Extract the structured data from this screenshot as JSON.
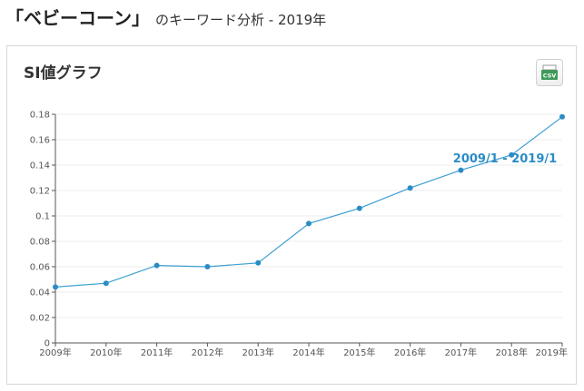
{
  "header": {
    "title": "「ベビーコーン」",
    "subtitle": "のキーワード分析 - 2019年"
  },
  "card": {
    "title": "SI値グラフ",
    "csv_label": "CSV",
    "csv_icon": "csv-download-icon"
  },
  "colors": {
    "line": "#3b9fd1",
    "point": "#2b8cc4",
    "range_label": "#2a8cc6",
    "csv_icon": "#3e9a5a"
  },
  "chart_data": {
    "type": "line",
    "title": "",
    "xlabel": "",
    "ylabel": "",
    "x": [
      "2009年",
      "2010年",
      "2011年",
      "2012年",
      "2013年",
      "2014年",
      "2015年",
      "2016年",
      "2017年",
      "2018年",
      "2019年"
    ],
    "yticks": [
      "0",
      "0.02",
      "0.04",
      "0.06",
      "0.08",
      "0.1",
      "0.12",
      "0.14",
      "0.16",
      "0.18"
    ],
    "series": [
      {
        "values": [
          0.044,
          0.047,
          0.061,
          0.06,
          0.063,
          0.094,
          0.106,
          0.122,
          0.136,
          0.148,
          0.178
        ]
      }
    ],
    "ylim": [
      0,
      0.18
    ],
    "grid": true,
    "annotation": "2009/1 - 2019/1"
  }
}
